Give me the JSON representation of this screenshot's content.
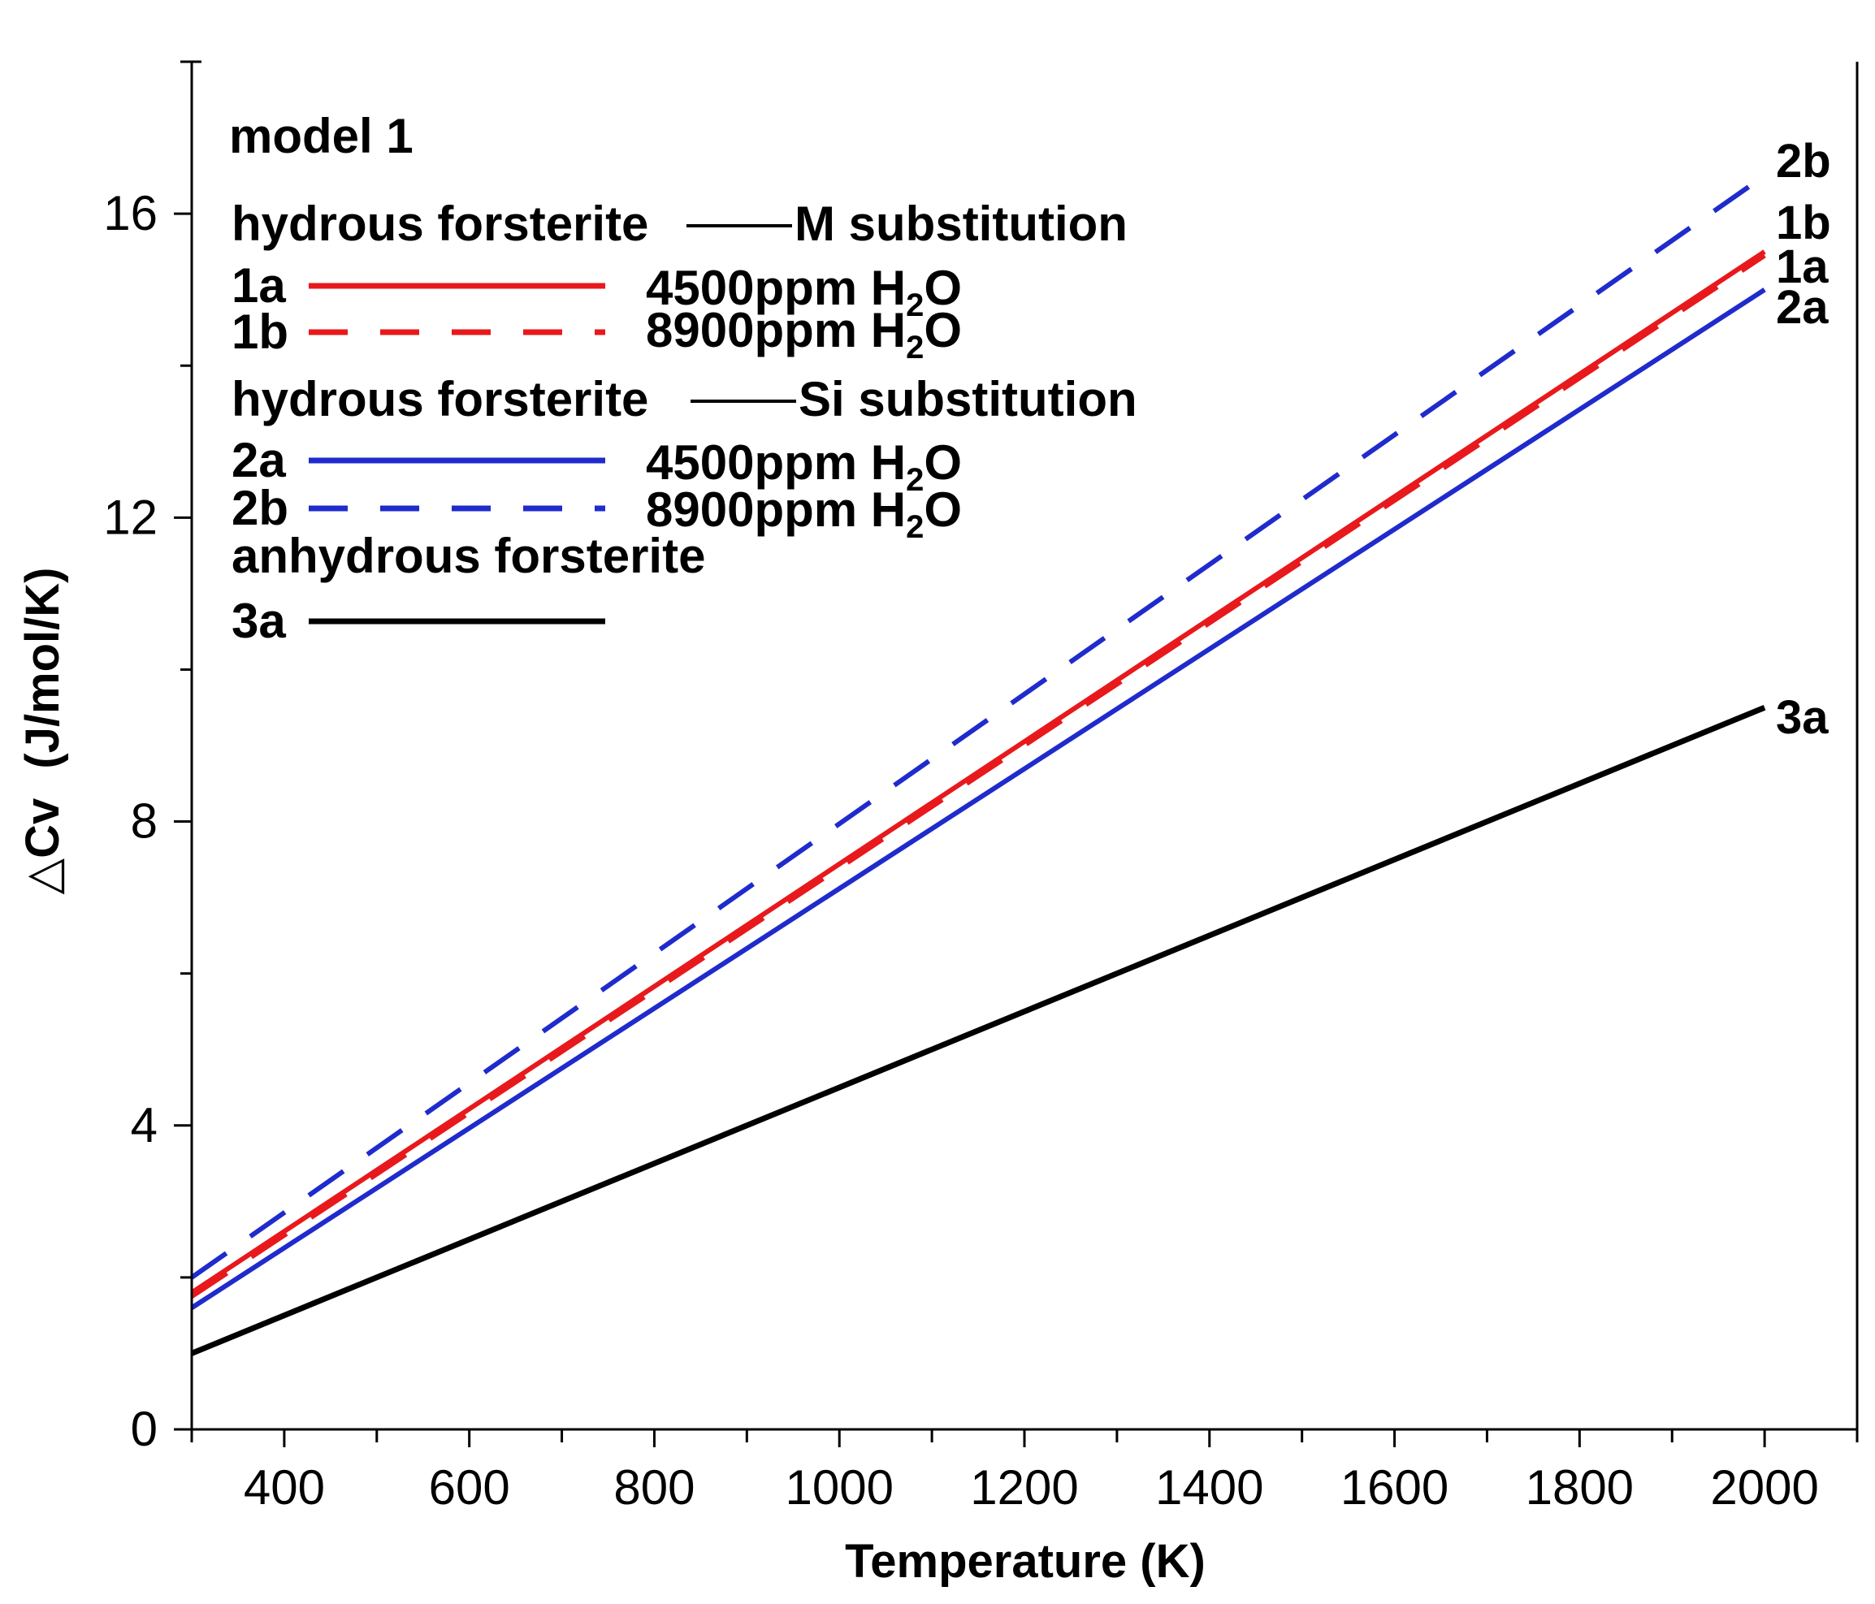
{
  "chart_data": {
    "type": "line",
    "title": "model 1",
    "xlabel": "Temperature (K)",
    "ylabel_symbol": "△Cv",
    "ylabel_units": "(J/mol/K)",
    "xlim": [
      300,
      2100
    ],
    "ylim": [
      0,
      18
    ],
    "x_major_ticks": [
      400,
      600,
      800,
      1000,
      1200,
      1400,
      1600,
      1800,
      2000
    ],
    "x_tick_labels": [
      "400",
      "600",
      "800",
      "1000",
      "1200",
      "1400",
      "1600",
      "1800",
      "2000"
    ],
    "x_minor_step": 100,
    "y_major_ticks": [
      0,
      4,
      8,
      12,
      16
    ],
    "y_tick_labels": [
      "0",
      "4",
      "8",
      "12",
      "16"
    ],
    "y_minor_step": 2,
    "legend": {
      "groups": [
        {
          "title_left": "hydrous forsterite",
          "title_right": "M substitution",
          "entries": [
            {
              "id": "1a",
              "label": "1a",
              "water_label": "4500ppm H",
              "water_sub": "2",
              "water_tail": "O"
            },
            {
              "id": "1b",
              "label": "1b",
              "water_label": "8900ppm H",
              "water_sub": "2",
              "water_tail": "O"
            }
          ]
        },
        {
          "title_left": "hydrous forsterite",
          "title_right": "Si substitution",
          "entries": [
            {
              "id": "2a",
              "label": "2a",
              "water_label": "4500ppm H",
              "water_sub": "2",
              "water_tail": "O"
            },
            {
              "id": "2b",
              "label": "2b",
              "water_label": "8900ppm H",
              "water_sub": "2",
              "water_tail": "O"
            }
          ]
        },
        {
          "title_left": "anhydrous forsterite",
          "entries": [
            {
              "id": "3a",
              "label": "3a"
            }
          ]
        }
      ]
    },
    "series": [
      {
        "name": "1a",
        "color": "#e8191c",
        "dash": "solid",
        "x": [
          300,
          2000
        ],
        "y": [
          1.8,
          15.5
        ]
      },
      {
        "name": "1b",
        "color": "#e8191c",
        "dash": "dashed",
        "x": [
          300,
          2000
        ],
        "y": [
          1.75,
          15.45
        ]
      },
      {
        "name": "2a",
        "color": "#1f2bcc",
        "dash": "solid",
        "x": [
          300,
          2000
        ],
        "y": [
          1.6,
          15.0
        ]
      },
      {
        "name": "2b",
        "color": "#1f2bcc",
        "dash": "dashed",
        "x": [
          300,
          2000
        ],
        "y": [
          2.0,
          16.5
        ]
      },
      {
        "name": "3a",
        "color": "#000000",
        "dash": "solid",
        "x": [
          300,
          2000
        ],
        "y": [
          1.0,
          9.5
        ]
      }
    ],
    "end_labels": [
      "2b",
      "1b",
      "1a",
      "2a",
      "3a"
    ]
  }
}
